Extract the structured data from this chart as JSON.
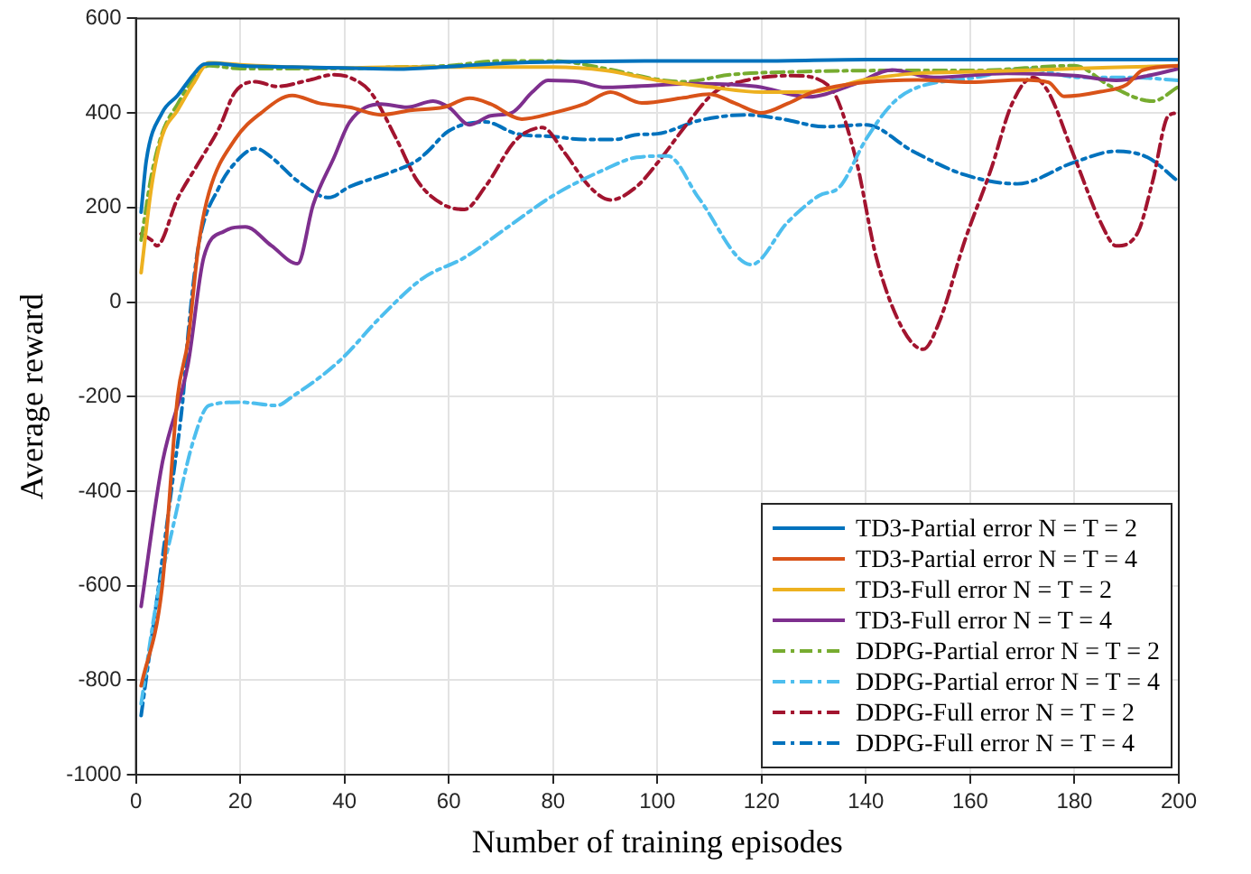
{
  "chart_data": {
    "type": "line",
    "xlabel": "Number of training episodes",
    "ylabel": "Average reward",
    "xlim": [
      0,
      200
    ],
    "xticks": [
      0,
      20,
      40,
      60,
      80,
      100,
      120,
      140,
      160,
      180,
      200
    ],
    "ylim": [
      -1000,
      600
    ],
    "yticks": [
      -1000,
      -800,
      -600,
      -400,
      -200,
      0,
      200,
      400,
      600
    ],
    "grid": true,
    "legend": "bottom right",
    "marker": "none",
    "series": [
      {
        "name": "TD3-Partial error N = T = 2",
        "color": "#0072bd",
        "line_style": "solid",
        "x": [
          1,
          2,
          5,
          8,
          11,
          13,
          15,
          20,
          30,
          40,
          50,
          60,
          70,
          80,
          100,
          120,
          140,
          160,
          200
        ],
        "values": [
          190,
          300,
          400,
          437,
          481,
          503,
          505,
          500,
          497,
          495,
          493,
          498,
          505,
          508,
          510,
          510,
          513,
          513,
          513
        ]
      },
      {
        "name": "TD3-Partial error N = T = 4",
        "color": "#d95319",
        "line_style": "solid",
        "x": [
          1,
          5,
          8,
          10,
          12,
          14,
          19,
          24,
          30,
          35,
          41,
          47,
          53,
          59,
          64,
          68,
          74,
          80,
          86,
          91,
          97,
          105,
          110,
          115,
          120,
          125,
          130,
          140,
          150,
          160,
          170,
          175,
          178,
          185,
          190,
          193,
          200
        ],
        "values": [
          -812,
          -606,
          -200,
          -81,
          119,
          231,
          344,
          400,
          437,
          421,
          412,
          396,
          406,
          412,
          431,
          419,
          387,
          400,
          419,
          444,
          421,
          432,
          440,
          420,
          400,
          420,
          445,
          465,
          470,
          465,
          470,
          465,
          435,
          445,
          460,
          490,
          500
        ]
      },
      {
        "name": "TD3-Full error N = T = 2",
        "color": "#edb120",
        "line_style": "solid",
        "x": [
          1,
          3,
          5,
          8,
          11,
          14,
          20,
          30,
          40,
          50,
          60,
          70,
          80,
          90,
          95,
          100,
          110,
          120,
          130,
          140,
          150,
          160,
          170,
          180,
          190,
          200
        ],
        "values": [
          62,
          244,
          350,
          406,
          462,
          506,
          502,
          497,
          495,
          497,
          497,
          497,
          497,
          490,
          480,
          469,
          455,
          444,
          445,
          471,
          484,
          487,
          490,
          494,
          497,
          500
        ]
      },
      {
        "name": "TD3-Full error N = T = 4",
        "color": "#7e2f8e",
        "line_style": "solid",
        "x": [
          1,
          5,
          10,
          13,
          17,
          21,
          26,
          31,
          34,
          38,
          41,
          47,
          52,
          57,
          60,
          64,
          68,
          72,
          76,
          79,
          85,
          90,
          95,
          108,
          119,
          129,
          138,
          145,
          153,
          167,
          180,
          188,
          195,
          200
        ],
        "values": [
          -644,
          -344,
          -131,
          94,
          150,
          159,
          119,
          81,
          206,
          306,
          381,
          419,
          412,
          425,
          412,
          375,
          394,
          400,
          444,
          469,
          466,
          454,
          456,
          462,
          456,
          434,
          462,
          491,
          475,
          484,
          479,
          469,
          481,
          494
        ]
      },
      {
        "name": "DDPG-Partial error N = T = 2",
        "color": "#77ac30",
        "line_style": "dashdot",
        "x": [
          1,
          3,
          5,
          8,
          12,
          14,
          20,
          30,
          40,
          50,
          60,
          70,
          80,
          90,
          100,
          105,
          114,
          126,
          149,
          161,
          180,
          187,
          195,
          200
        ],
        "values": [
          131,
          269,
          356,
          419,
          487,
          500,
          494,
          494,
          494,
          497,
          500,
          510,
          510,
          494,
          471,
          466,
          481,
          487,
          490,
          490,
          500,
          456,
          425,
          456
        ]
      },
      {
        "name": "DDPG-Partial error N = T = 4",
        "color": "#4dbeee",
        "line_style": "dashdot",
        "x": [
          1,
          4,
          7,
          11,
          14,
          20,
          27,
          30,
          39,
          47,
          55,
          63,
          71,
          80,
          90,
          96,
          102,
          108,
          118,
          125,
          131,
          135,
          140,
          145,
          149,
          161,
          171,
          181,
          191,
          200
        ],
        "values": [
          -850,
          -631,
          -481,
          -294,
          -219,
          -212,
          -219,
          -200,
          -125,
          -31,
          50,
          94,
          156,
          225,
          281,
          306,
          309,
          219,
          79,
          169,
          225,
          244,
          344,
          419,
          450,
          475,
          494,
          475,
          475,
          469
        ]
      },
      {
        "name": "DDPG-Full error N = T = 2",
        "color": "#a2142f",
        "line_style": "dashdot",
        "x": [
          1,
          3,
          4,
          8,
          12,
          16,
          19,
          23,
          27,
          33,
          38,
          41,
          45,
          50,
          54,
          59,
          63,
          67,
          73,
          78,
          82,
          87,
          91,
          96,
          100,
          106,
          111,
          117,
          126,
          133,
          138,
          142,
          147,
          151,
          154,
          159,
          164,
          168,
          172,
          175,
          180,
          185,
          188,
          192,
          195,
          198,
          200
        ],
        "values": [
          144,
          131,
          119,
          219,
          294,
          369,
          444,
          466,
          456,
          469,
          481,
          475,
          444,
          344,
          256,
          206,
          196,
          244,
          344,
          369,
          319,
          244,
          216,
          244,
          294,
          381,
          444,
          469,
          479,
          456,
          306,
          94,
          -56,
          -100,
          -44,
          131,
          281,
          419,
          475,
          444,
          306,
          169,
          119,
          144,
          256,
          394,
          400
        ]
      },
      {
        "name": "DDPG-Full error N = T = 4",
        "color": "#0072bd",
        "line_style": "dashdot",
        "x": [
          1,
          4,
          7,
          9,
          10,
          12,
          16,
          19,
          23,
          26,
          31,
          37,
          41,
          49,
          54,
          56,
          60,
          67,
          73,
          80,
          86,
          92,
          96,
          100,
          108,
          117,
          124,
          132,
          140,
          149,
          159,
          169,
          180,
          188,
          194,
          200
        ],
        "values": [
          -875,
          -631,
          -381,
          -206,
          -69,
          119,
          244,
          294,
          325,
          306,
          256,
          221,
          244,
          275,
          300,
          319,
          362,
          381,
          356,
          350,
          344,
          344,
          354,
          356,
          384,
          396,
          387,
          371,
          375,
          319,
          269,
          250,
          296,
          319,
          306,
          254
        ]
      }
    ]
  }
}
